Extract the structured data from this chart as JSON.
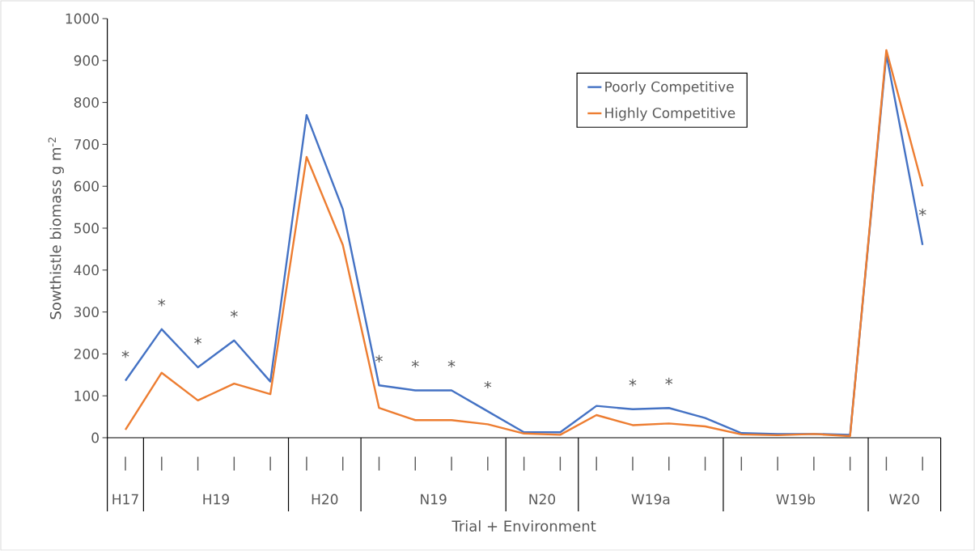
{
  "chart_data": {
    "type": "line",
    "xlabel": "Trial + Environment",
    "ylabel": "Sowthistle biomass g m$^{-2}$",
    "categories": [
      "|",
      "|",
      "|",
      "|",
      "|",
      "|",
      "|",
      "|",
      "|",
      "|",
      "|",
      "|",
      "|",
      "|",
      "|",
      "|",
      "|",
      "|",
      "|",
      "|",
      "|",
      "|",
      "|"
    ],
    "series": [
      {
        "name": "Poorly Competitive",
        "color": "#4472c4",
        "values": [
          136,
          259,
          168,
          232,
          134,
          770,
          545,
          125,
          113,
          113,
          63,
          13,
          13,
          76,
          68,
          71,
          47,
          11,
          9,
          9,
          7,
          915,
          460
        ]
      },
      {
        "name": "Highly Competitive",
        "color": "#ed7d31",
        "values": [
          19,
          155,
          89,
          129,
          104,
          670,
          460,
          71,
          42,
          42,
          32,
          10,
          7,
          54,
          30,
          34,
          27,
          8,
          6,
          9,
          4,
          925,
          600
        ]
      }
    ],
    "ylim": [
      0,
      1000
    ],
    "yticks": [
      0,
      100,
      200,
      300,
      400,
      500,
      600,
      700,
      800,
      900,
      1000
    ],
    "legend": "top right",
    "marker": "none",
    "line_style": "solid",
    "annotations": [
      "*",
      "*",
      "*",
      "*",
      "*",
      "*",
      "*",
      "*",
      "*",
      "*",
      "*",
      "H17",
      "H19",
      "H20",
      "N19",
      "N20",
      "W19a",
      "W19b",
      "W20"
    ]
  }
}
